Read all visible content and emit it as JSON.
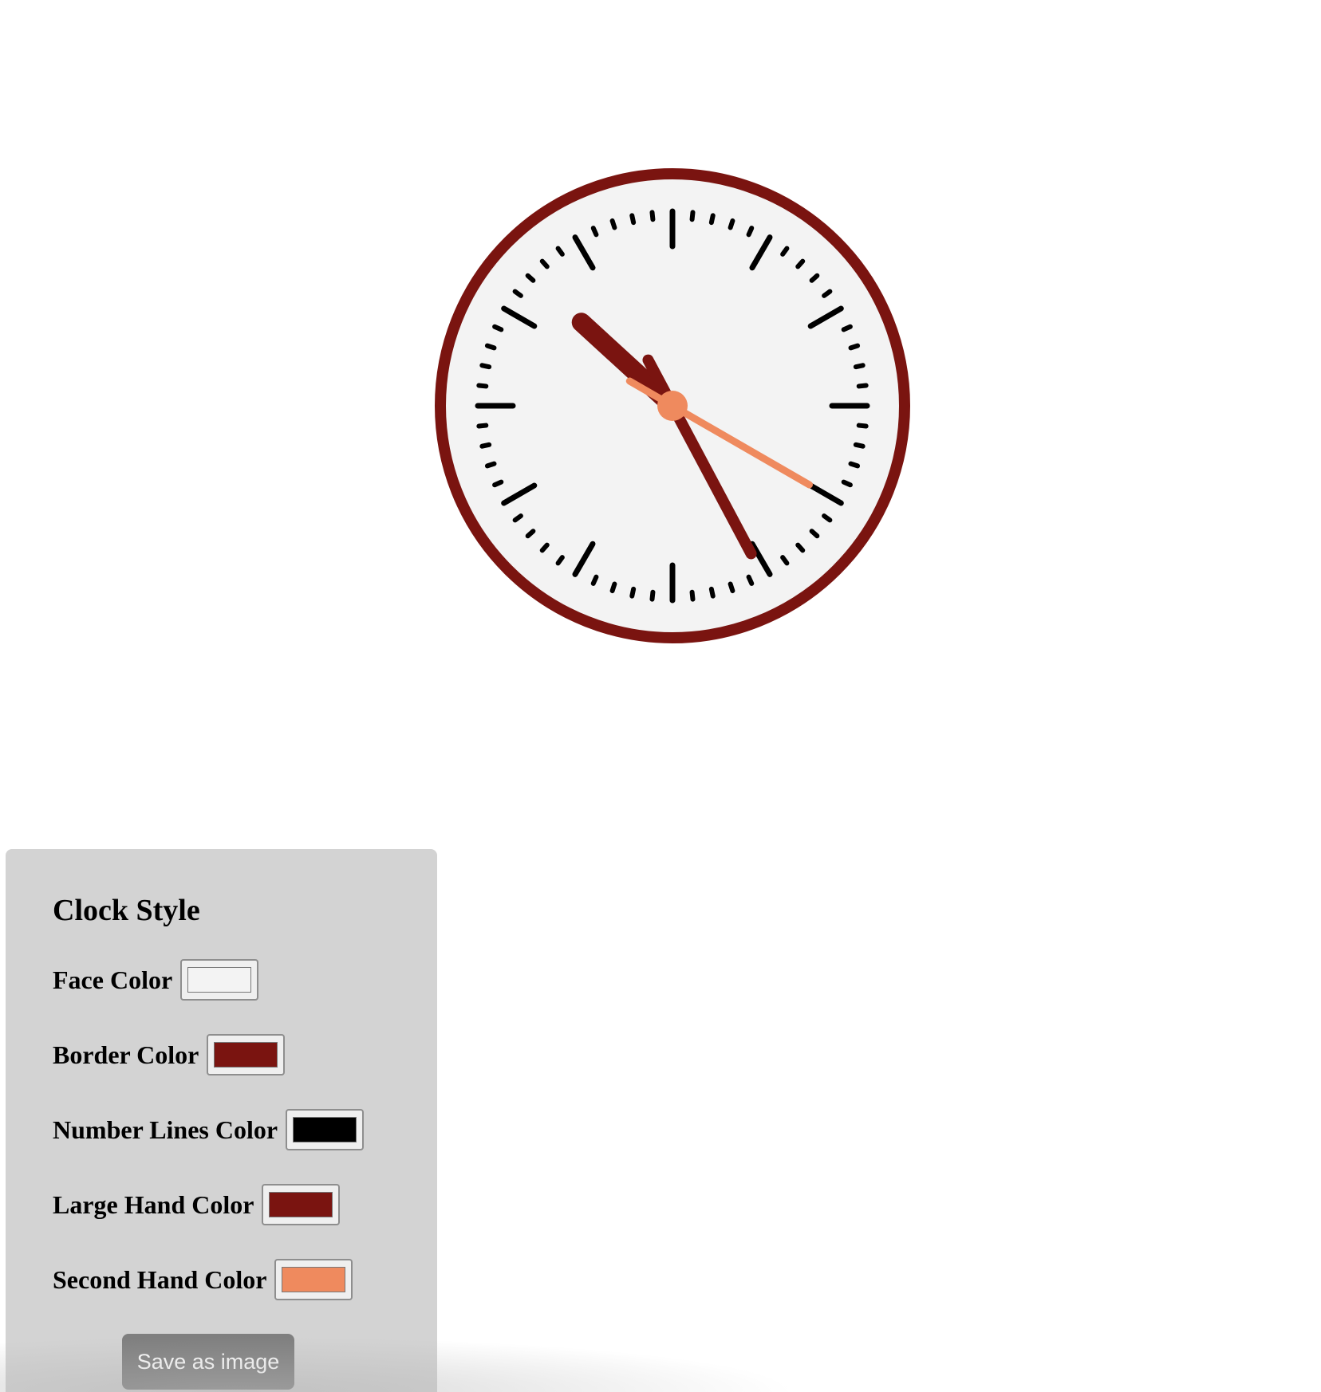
{
  "clock": {
    "face_color": "#f3f3f3",
    "border_color": "#7a1410",
    "number_lines_color": "#000000",
    "large_hand_color": "#7a1410",
    "second_hand_color": "#ef8a5e",
    "time": {
      "hours": 10,
      "minutes": 25,
      "seconds": 20
    }
  },
  "panel": {
    "title": "Clock Style",
    "rows": [
      {
        "label": "Face Color",
        "color": "#f3f3f3"
      },
      {
        "label": "Border Color",
        "color": "#7a1410"
      },
      {
        "label": "Number Lines Color",
        "color": "#000000"
      },
      {
        "label": "Large Hand Color",
        "color": "#7a1410"
      },
      {
        "label": "Second Hand Color",
        "color": "#ef8a5e"
      }
    ],
    "save_label": "Save as image"
  }
}
